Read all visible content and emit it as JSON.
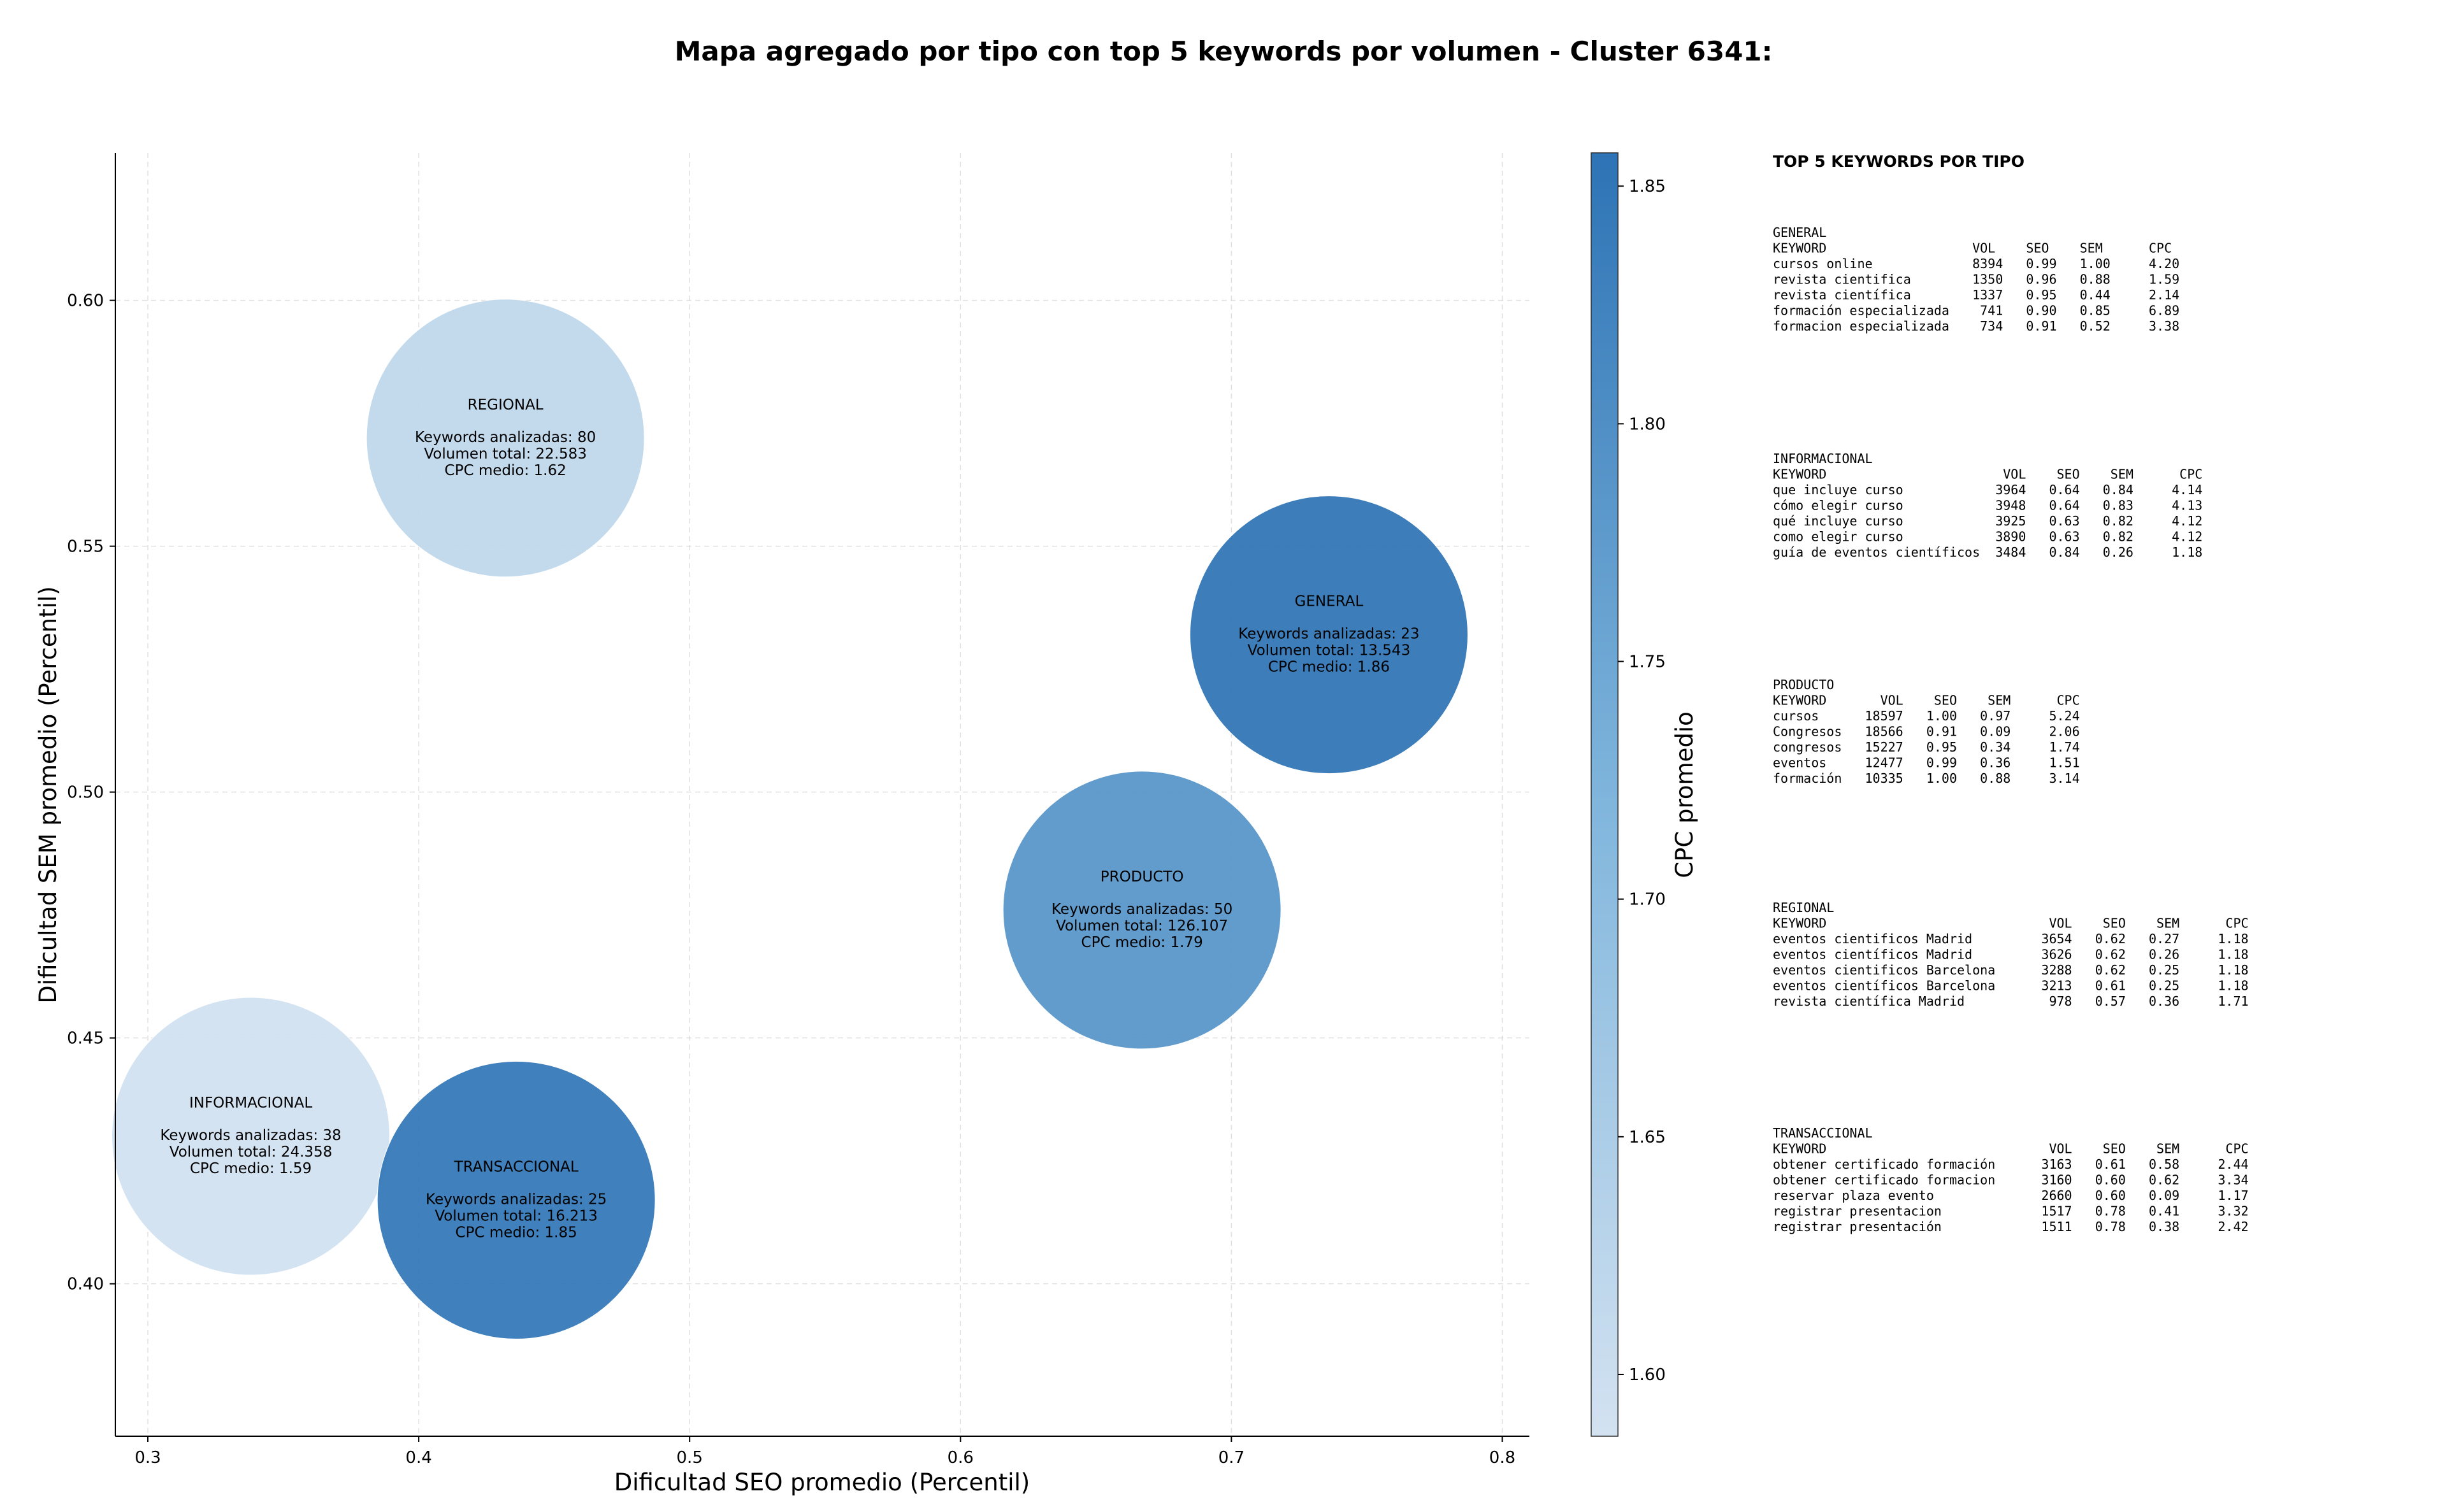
{
  "chart_data": {
    "type": "scatter",
    "title": "Mapa agregado por tipo con top 5 keywords por volumen - Cluster 6341:",
    "xlabel": "Dificultad SEO promedio (Percentil)",
    "ylabel": "Dificultad SEM promedio (Percentil)",
    "xlim": [
      0.288,
      0.81
    ],
    "ylim": [
      0.369,
      0.63
    ],
    "xticks": [
      0.3,
      0.4,
      0.5,
      0.6,
      0.7,
      0.8
    ],
    "xtick_labels": [
      "0.3",
      "0.4",
      "0.5",
      "0.6",
      "0.7",
      "0.8"
    ],
    "yticks": [
      0.4,
      0.45,
      0.5,
      0.55,
      0.6
    ],
    "ytick_labels": [
      "0.40",
      "0.45",
      "0.50",
      "0.55",
      "0.60"
    ],
    "grid": true,
    "bubble_label_prefixes": {
      "keywords": "Keywords analizadas: ",
      "volume": "Volumen total: ",
      "cpc": "CPC medio: "
    },
    "bubbles": [
      {
        "name": "REGIONAL",
        "x": 0.432,
        "y": 0.572,
        "keywords": 80,
        "volume": "22.583",
        "cpc": 1.62,
        "cpc_label": "1.62"
      },
      {
        "name": "GENERAL",
        "x": 0.736,
        "y": 0.532,
        "keywords": 23,
        "volume": "13.543",
        "cpc": 1.86,
        "cpc_label": "1.86"
      },
      {
        "name": "PRODUCTO",
        "x": 0.667,
        "y": 0.476,
        "keywords": 50,
        "volume": "126.107",
        "cpc": 1.79,
        "cpc_label": "1.79"
      },
      {
        "name": "INFORMACIONAL",
        "x": 0.338,
        "y": 0.43,
        "keywords": 38,
        "volume": "24.358",
        "cpc": 1.59,
        "cpc_label": "1.59"
      },
      {
        "name": "TRANSACCIONAL",
        "x": 0.436,
        "y": 0.417,
        "keywords": 25,
        "volume": "16.213",
        "cpc": 1.85,
        "cpc_label": "1.85"
      }
    ],
    "colorbar": {
      "label": "CPC promedio",
      "min": 1.587,
      "max": 1.857,
      "ticks": [
        1.6,
        1.65,
        1.7,
        1.75,
        1.8,
        1.85
      ],
      "tick_labels": [
        "1.60",
        "1.65",
        "1.70",
        "1.75",
        "1.80",
        "1.85"
      ],
      "color_low": "#d3e2f1",
      "color_mid": "#7fb5dc",
      "color_high": "#2d73b5"
    }
  },
  "keyword_panel": {
    "title": "TOP 5 KEYWORDS POR TIPO",
    "groups": [
      {
        "name": "GENERAL",
        "header": "KEYWORD                   VOL    SEO    SEM      CPC",
        "rows": [
          "cursos online             8394   0.99   1.00     4.20",
          "revista cientifica        1350   0.96   0.88     1.59",
          "revista científica        1337   0.95   0.44     2.14",
          "formación especializada    741   0.90   0.85     6.89",
          "formacion especializada    734   0.91   0.52     3.38"
        ]
      },
      {
        "name": "INFORMACIONAL",
        "header": "KEYWORD                       VOL    SEO    SEM      CPC",
        "rows": [
          "que incluye curso            3964   0.64   0.84     4.14",
          "cómo elegir curso            3948   0.64   0.83     4.13",
          "qué incluye curso            3925   0.63   0.82     4.12",
          "como elegir curso            3890   0.63   0.82     4.12",
          "guía de eventos científicos  3484   0.84   0.26     1.18"
        ]
      },
      {
        "name": "PRODUCTO",
        "header": "KEYWORD       VOL    SEO    SEM      CPC",
        "rows": [
          "cursos      18597   1.00   0.97     5.24",
          "Congresos   18566   0.91   0.09     2.06",
          "congresos   15227   0.95   0.34     1.74",
          "eventos     12477   0.99   0.36     1.51",
          "formación   10335   1.00   0.88     3.14"
        ]
      },
      {
        "name": "REGIONAL",
        "header": "KEYWORD                             VOL    SEO    SEM      CPC",
        "rows": [
          "eventos cientificos Madrid         3654   0.62   0.27     1.18",
          "eventos científicos Madrid         3626   0.62   0.26     1.18",
          "eventos cientificos Barcelona      3288   0.62   0.25     1.18",
          "eventos científicos Barcelona      3213   0.61   0.25     1.18",
          "revista científica Madrid           978   0.57   0.36     1.71"
        ]
      },
      {
        "name": "TRANSACCIONAL",
        "header": "KEYWORD                             VOL    SEO    SEM      CPC",
        "rows": [
          "obtener certificado formación      3163   0.61   0.58     2.44",
          "obtener certificado formacion      3160   0.60   0.62     3.34",
          "reservar plaza evento              2660   0.60   0.09     1.17",
          "registrar presentacion             1517   0.78   0.41     3.32",
          "registrar presentación             1511   0.78   0.38     2.42"
        ]
      }
    ]
  }
}
